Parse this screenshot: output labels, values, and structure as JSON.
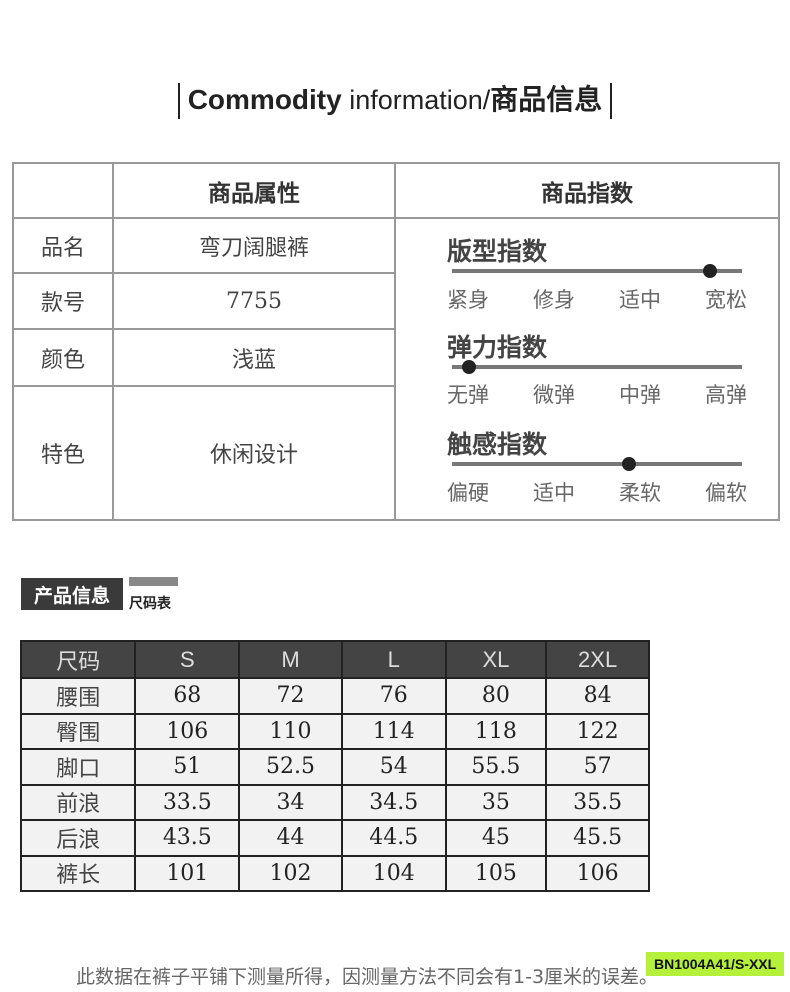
{
  "header": {
    "title_bold": "Commodity",
    "title_light": " information/",
    "title_cn": "商品信息"
  },
  "attributes": {
    "col_header": "商品属性",
    "index_header": "商品指数",
    "rows": [
      {
        "label": "品名",
        "value": "弯刀阔腿裤"
      },
      {
        "label": "款号",
        "value": "7755"
      },
      {
        "label": "颜色",
        "value": "浅蓝"
      },
      {
        "label": "特色",
        "value": "休闲设计"
      }
    ]
  },
  "indices": [
    {
      "title": "版型指数",
      "options": [
        "紧身",
        "修身",
        "适中",
        "宽松"
      ],
      "level_fraction": 0.89
    },
    {
      "title": "弹力指数",
      "options": [
        "无弹",
        "微弹",
        "中弹",
        "高弹"
      ],
      "level_fraction": 0.06
    },
    {
      "title": "触感指数",
      "options": [
        "偏硬",
        "适中",
        "柔软",
        "偏软"
      ],
      "level_fraction": 0.61
    }
  ],
  "section": {
    "title": "产品信息",
    "subtitle": "尺码表"
  },
  "size_table": {
    "headers": [
      "尺码",
      "S",
      "M",
      "L",
      "XL",
      "2XL"
    ],
    "rows": [
      [
        "腰围",
        "68",
        "72",
        "76",
        "80",
        "84"
      ],
      [
        "臀围",
        "106",
        "110",
        "114",
        "118",
        "122"
      ],
      [
        "脚口",
        "51",
        "52.5",
        "54",
        "55.5",
        "57"
      ],
      [
        "前浪",
        "33.5",
        "34",
        "34.5",
        "35",
        "35.5"
      ],
      [
        "后浪",
        "43.5",
        "44",
        "44.5",
        "45",
        "45.5"
      ],
      [
        "裤长",
        "101",
        "102",
        "104",
        "105",
        "106"
      ]
    ]
  },
  "footer": {
    "note": "此数据在裤子平铺下测量所得，因测量方法不同会有1-3厘米的误差。",
    "badge": "BN1004A41/S-XXL"
  },
  "colors": {
    "badge": "#b5f03a",
    "header_dark": "#444444"
  }
}
